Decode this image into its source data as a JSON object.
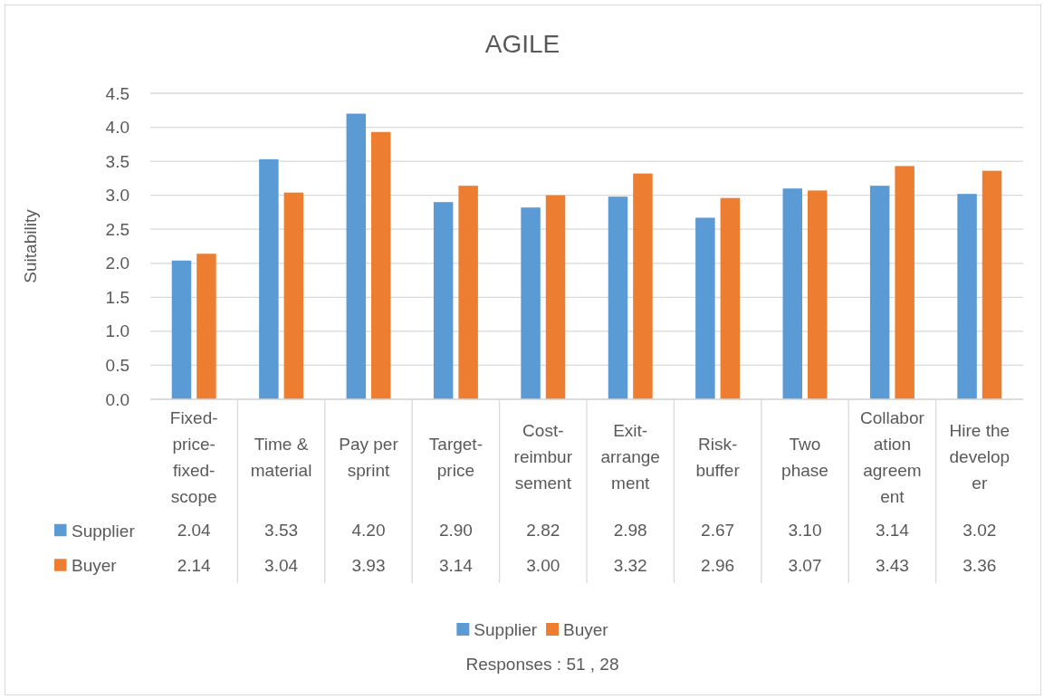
{
  "chart_data": {
    "type": "bar",
    "title": "AGILE",
    "ylabel": "Suitability",
    "categories": [
      "Fixed-price-fixed-scope",
      "Time & material",
      "Pay per sprint",
      "Target-price",
      "Cost-reimbursement",
      "Exit-arrangement",
      "Risk-buffer",
      "Two phase",
      "Collaboration agreement",
      "Hire the developer"
    ],
    "series": [
      {
        "name": "Supplier",
        "color": "#5b9bd5",
        "values": [
          2.04,
          3.53,
          4.2,
          2.9,
          2.82,
          2.98,
          2.67,
          3.1,
          3.14,
          3.02
        ],
        "value_labels": [
          "2.04",
          "3.53",
          "4.20",
          "2.90",
          "2.82",
          "2.98",
          "2.67",
          "3.10",
          "3.14",
          "3.02"
        ]
      },
      {
        "name": "Buyer",
        "color": "#ed7d31",
        "values": [
          2.14,
          3.04,
          3.93,
          3.14,
          3.0,
          3.32,
          2.96,
          3.07,
          3.43,
          3.36
        ],
        "value_labels": [
          "2.14",
          "3.04",
          "3.93",
          "3.14",
          "3.00",
          "3.32",
          "2.96",
          "3.07",
          "3.43",
          "3.36"
        ]
      }
    ],
    "ylim": [
      0,
      4.5
    ],
    "yticks": [
      {
        "value": 0,
        "label": "0.0"
      },
      0.5,
      {
        "value": 1,
        "label": "1.0"
      },
      1.5,
      {
        "value": 2,
        "label": "2.0"
      },
      2.5,
      {
        "value": 3,
        "label": "3.0"
      },
      3.5,
      {
        "value": 4,
        "label": "4.0"
      },
      4.5
    ],
    "grid": "y",
    "legend": "bottom",
    "annotations": [
      "Responses : 51 , 28"
    ]
  }
}
